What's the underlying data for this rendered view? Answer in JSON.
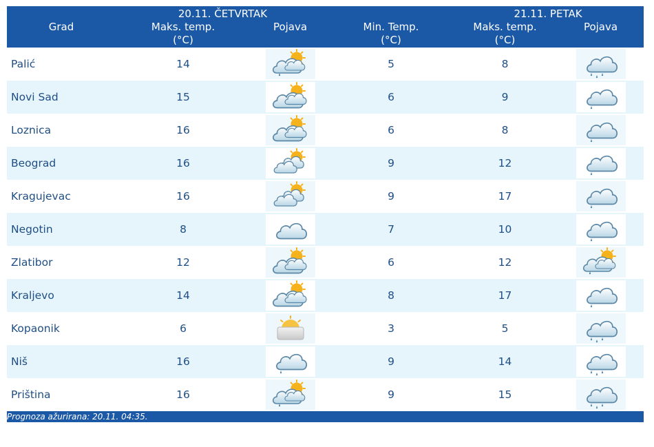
{
  "header": {
    "col_city": "Grad",
    "day1_label": "20.11. ČETVRTAK",
    "day2_label": "21.11. PETAK",
    "col_max_temp": "Maks. temp.",
    "col_min_temp": "Min. Temp.",
    "col_unit": "(°C)",
    "col_pojava": "Pojava"
  },
  "rows": [
    {
      "city": "Palić",
      "d1_max": "14",
      "d1_icon": "partly-sunny-rain-icon",
      "d2_min": "5",
      "d2_max": "8",
      "d2_icon": "cloud-rain-icon"
    },
    {
      "city": "Novi Sad",
      "d1_max": "15",
      "d1_icon": "partly-sunny-icon",
      "d2_min": "6",
      "d2_max": "9",
      "d2_icon": "cloud-drizzle-icon"
    },
    {
      "city": "Loznica",
      "d1_max": "16",
      "d1_icon": "partly-sunny-icon",
      "d2_min": "6",
      "d2_max": "8",
      "d2_icon": "cloud-drizzle-icon"
    },
    {
      "city": "Beograd",
      "d1_max": "16",
      "d1_icon": "sun-behind-clouds-icon",
      "d2_min": "9",
      "d2_max": "12",
      "d2_icon": "cloud-drizzle-icon"
    },
    {
      "city": "Kragujevac",
      "d1_max": "16",
      "d1_icon": "sun-behind-clouds-icon",
      "d2_min": "9",
      "d2_max": "17",
      "d2_icon": "cloud-drizzle-icon"
    },
    {
      "city": "Negotin",
      "d1_max": "8",
      "d1_icon": "cloud-icon",
      "d2_min": "7",
      "d2_max": "10",
      "d2_icon": "cloud-drizzle-icon"
    },
    {
      "city": "Zlatibor",
      "d1_max": "12",
      "d1_icon": "partly-sunny-icon",
      "d2_min": "6",
      "d2_max": "12",
      "d2_icon": "partly-sunny-rain-icon"
    },
    {
      "city": "Kraljevo",
      "d1_max": "14",
      "d1_icon": "partly-sunny-icon",
      "d2_min": "8",
      "d2_max": "17",
      "d2_icon": "cloud-drizzle-icon"
    },
    {
      "city": "Kopaonik",
      "d1_max": "6",
      "d1_icon": "fog-sun-icon",
      "d2_min": "3",
      "d2_max": "5",
      "d2_icon": "cloud-rain-icon"
    },
    {
      "city": "Niš",
      "d1_max": "16",
      "d1_icon": "cloud-drizzle-icon",
      "d2_min": "9",
      "d2_max": "14",
      "d2_icon": "cloud-rain-icon"
    },
    {
      "city": "Priština",
      "d1_max": "16",
      "d1_icon": "partly-sunny-rain-icon",
      "d2_min": "9",
      "d2_max": "15",
      "d2_icon": "cloud-rain-icon"
    }
  ],
  "footer": {
    "text": "Prognoza ažurirana:  20.11. 04:35."
  },
  "colors": {
    "header_bg": "#1b58a6",
    "row_alt_bg": "#e6f5fb",
    "text": "#1f4e85"
  }
}
